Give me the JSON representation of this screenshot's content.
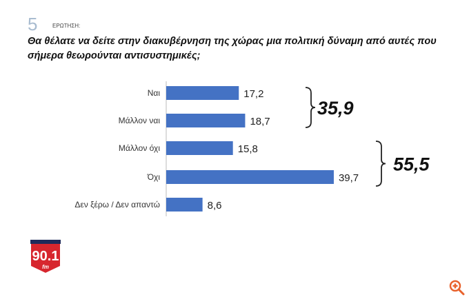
{
  "question_number": "5",
  "question_label": "ΕΡΩΤΗΣΗ:",
  "title": "Θα θέλατε να δείτε στην διακυβέρνηση της χώρας μια πολιτική δύναμη από αυτές που σήμερα θεωρούνται αντισυστημικές;",
  "logo_text": "ΠΑΡΑΠΟΛΙΤΙΚΑ 90.1 fm",
  "colors": {
    "bar": "#4472c4",
    "logo": "#d7262e",
    "zoom_icon": "#e8622c"
  },
  "chart_data": {
    "type": "bar",
    "orientation": "horizontal",
    "categories": [
      "Ναι",
      "Μάλλον ναι",
      "Μάλλον όχι",
      "Όχι",
      "Δεν ξέρω / Δεν απαντώ"
    ],
    "values": [
      17.2,
      18.7,
      15.8,
      39.7,
      8.6
    ],
    "value_labels": [
      "17,2",
      "18,7",
      "15,8",
      "39,7",
      "8,6"
    ],
    "groups": [
      {
        "label": "35,9",
        "categories": [
          "Ναι",
          "Μάλλον ναι"
        ]
      },
      {
        "label": "55,5",
        "categories": [
          "Μάλλον όχι",
          "Όχι"
        ]
      }
    ],
    "grid": false
  }
}
